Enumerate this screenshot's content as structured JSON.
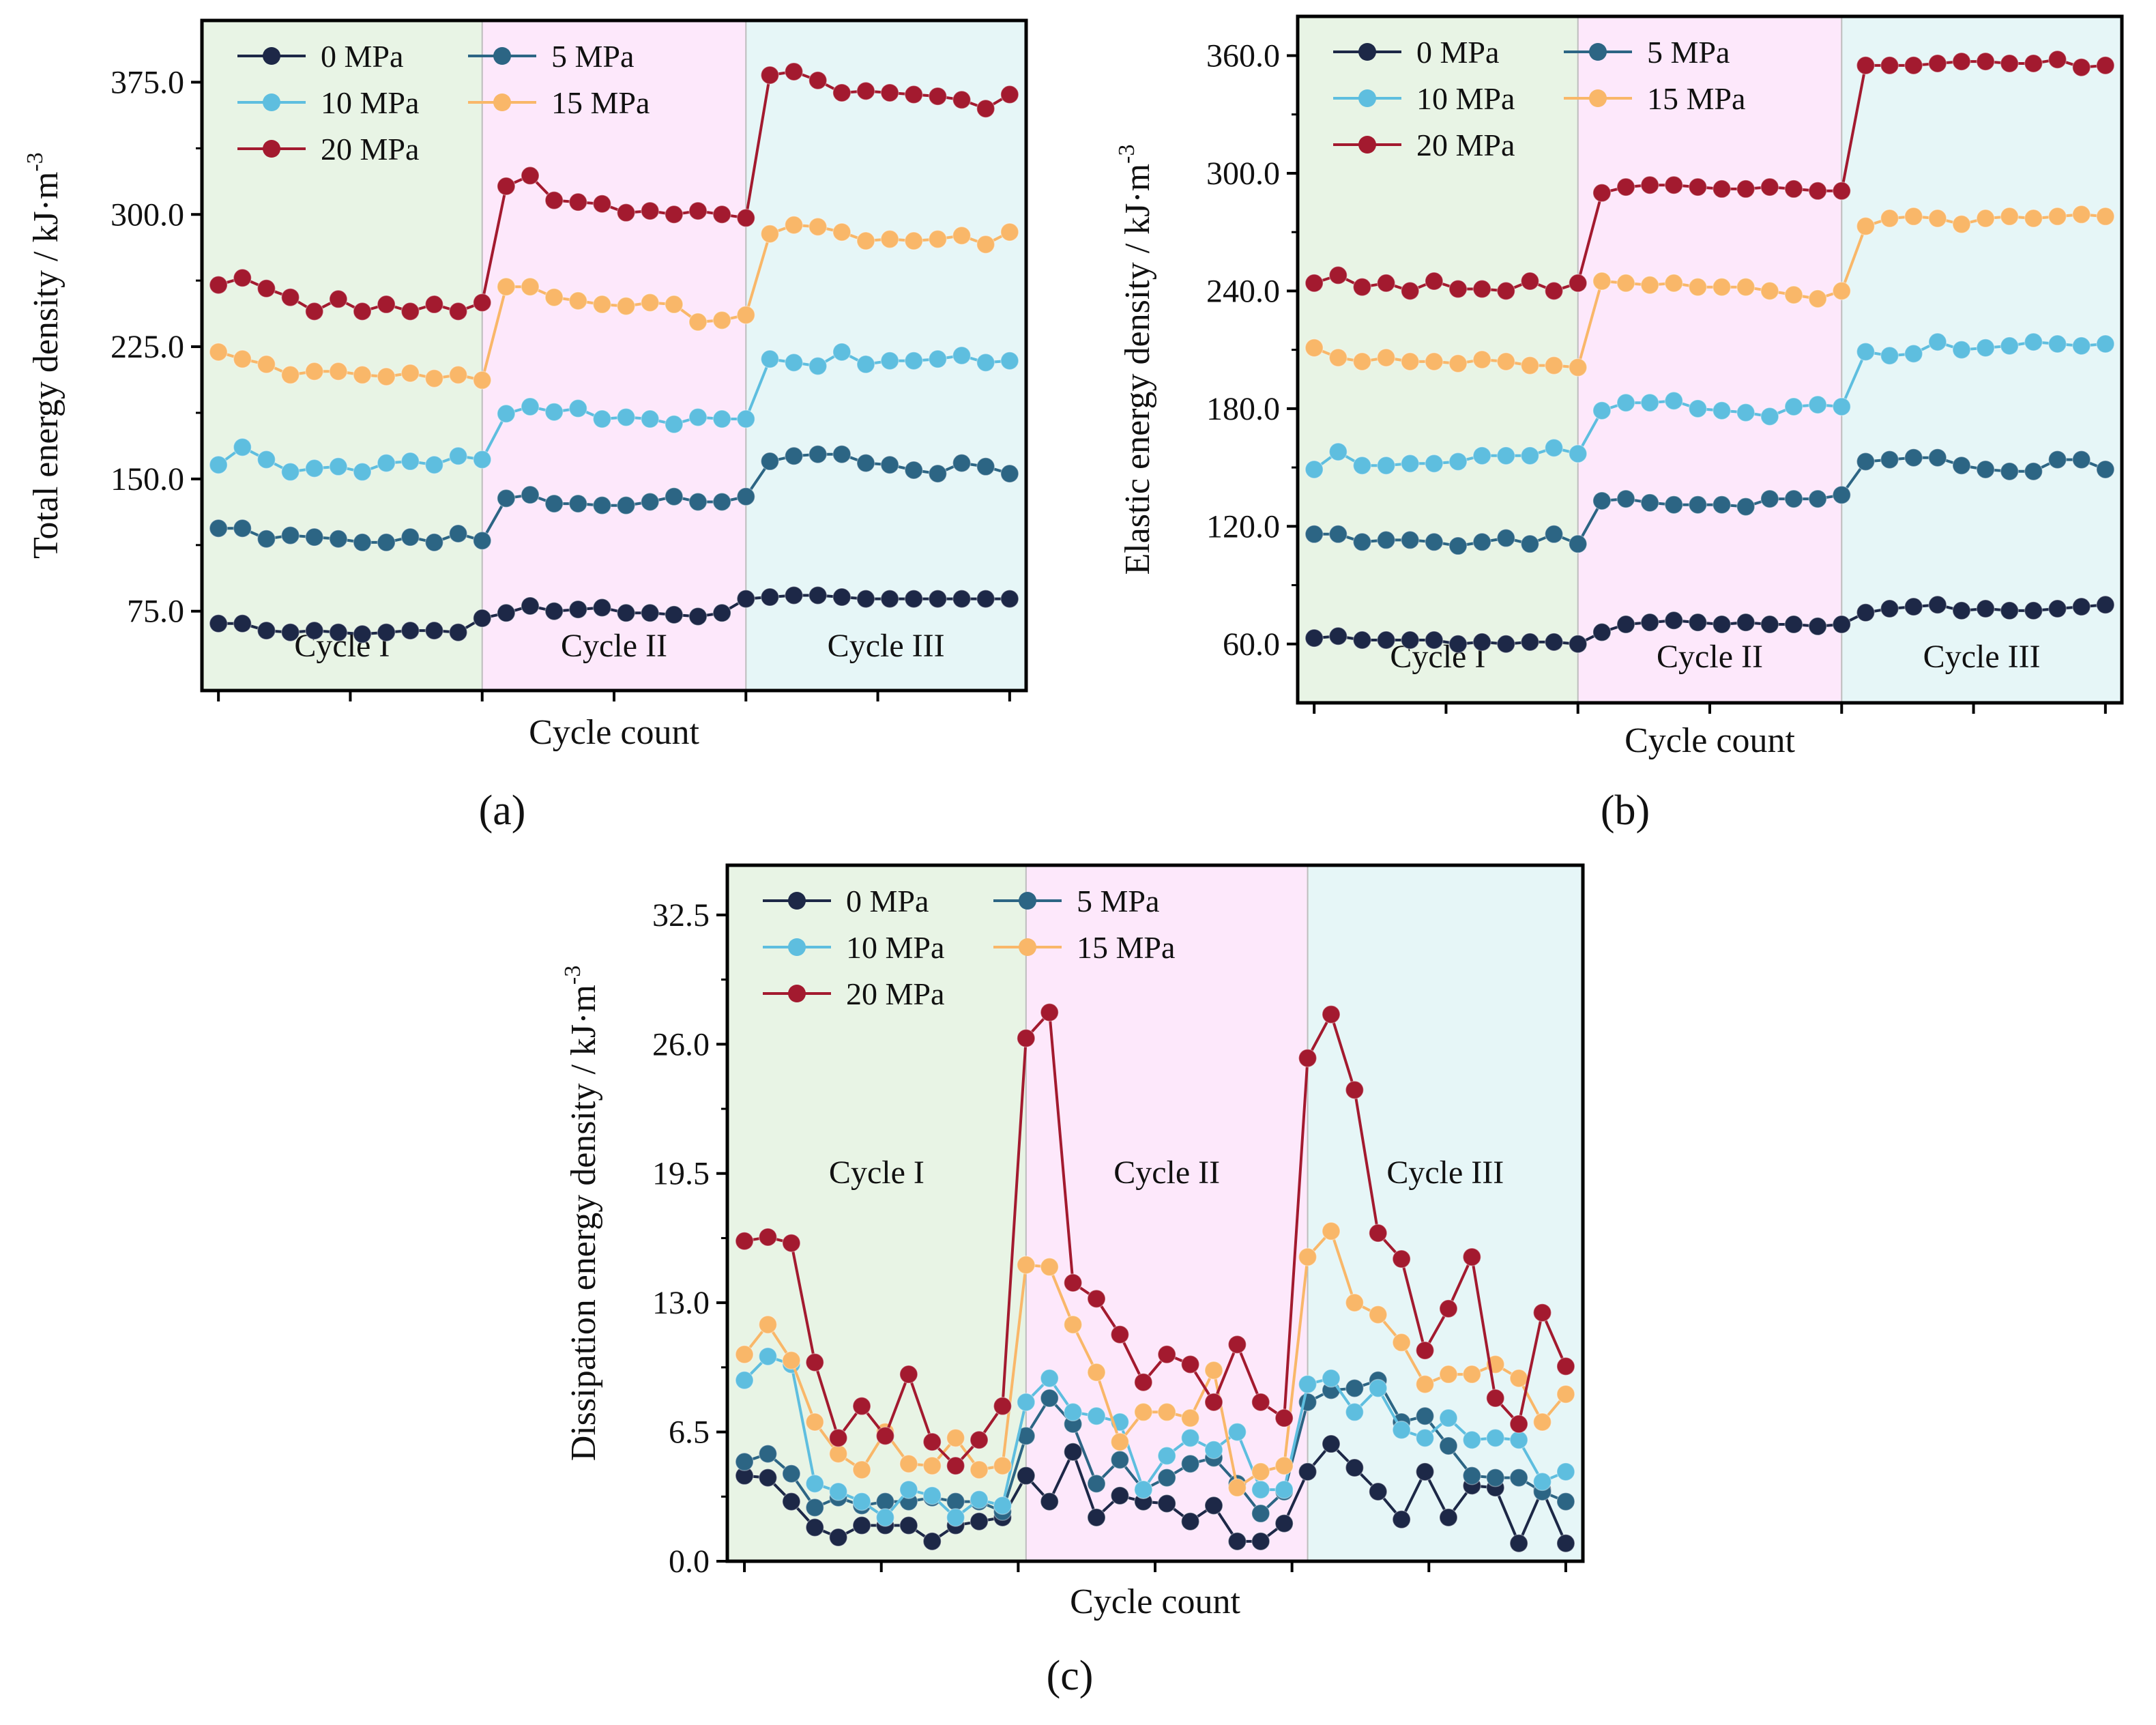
{
  "figure": {
    "colors": {
      "cycle1": "#e8f4e5",
      "cycle2": "#fde8fb",
      "cycle3": "#e6f6f7",
      "axis": "#000000",
      "divider": "#bdbdbd"
    },
    "series_styles": [
      {
        "name": "0 MPa",
        "color": "#1d2847"
      },
      {
        "name": "5 MPa",
        "color": "#2c6584"
      },
      {
        "name": "10 MPa",
        "color": "#5ebedf"
      },
      {
        "name": "15 MPa",
        "color": "#f9b769"
      },
      {
        "name": "20 MPa",
        "color": "#a31a2f"
      }
    ]
  },
  "chart_data": [
    {
      "type": "line",
      "panel_label": "(a)",
      "title": "",
      "xlabel": "Cycle count",
      "ylabel": "Total energy density / kJ·m",
      "ylabel_sup": "-3",
      "ylim": [
        30,
        410
      ],
      "yticks": [
        75,
        150,
        225,
        300,
        375
      ],
      "ytick_labels": [
        "75.0",
        "150.0",
        "225.0",
        "300.0",
        "375.0"
      ],
      "regions": [
        "Cycle I",
        "Cycle II",
        "Cycle III"
      ],
      "legend_position": "top-left",
      "series": [
        {
          "name": "0 MPa",
          "values": [
            68,
            68,
            64,
            63,
            64,
            63,
            62,
            63,
            64,
            64,
            63,
            71,
            74,
            78,
            75,
            76,
            77,
            74,
            74,
            73,
            72,
            74,
            82,
            83,
            84,
            84,
            83,
            82,
            82,
            82,
            82,
            82,
            82,
            82
          ]
        },
        {
          "name": "5 MPa",
          "values": [
            122,
            122,
            116,
            118,
            117,
            116,
            114,
            114,
            117,
            114,
            119,
            115,
            139,
            141,
            136,
            136,
            135,
            135,
            137,
            140,
            137,
            137,
            140,
            160,
            163,
            164,
            164,
            159,
            158,
            155,
            153,
            159,
            157,
            153
          ]
        },
        {
          "name": "10 MPa",
          "values": [
            158,
            168,
            161,
            154,
            156,
            157,
            154,
            159,
            160,
            158,
            163,
            161,
            187,
            191,
            188,
            190,
            184,
            185,
            184,
            181,
            185,
            184,
            184,
            218,
            216,
            214,
            222,
            215,
            217,
            217,
            218,
            220,
            216,
            217
          ]
        },
        {
          "name": "15 MPa",
          "values": [
            222,
            218,
            215,
            209,
            211,
            211,
            209,
            208,
            210,
            207,
            209,
            206,
            259,
            259,
            253,
            251,
            249,
            248,
            250,
            249,
            239,
            240,
            243,
            289,
            294,
            293,
            290,
            285,
            286,
            285,
            286,
            288,
            283,
            290
          ]
        },
        {
          "name": "20 MPa",
          "values": [
            260,
            264,
            258,
            253,
            245,
            252,
            245,
            249,
            245,
            249,
            245,
            250,
            316,
            322,
            308,
            307,
            306,
            301,
            302,
            300,
            302,
            300,
            298,
            379,
            381,
            376,
            369,
            370,
            369,
            368,
            367,
            365,
            360,
            368
          ]
        }
      ]
    },
    {
      "type": "line",
      "panel_label": "(b)",
      "title": "",
      "xlabel": "Cycle count",
      "ylabel": "Elastic energy density / kJ·m",
      "ylabel_sup": "-3",
      "ylim": [
        30,
        380
      ],
      "yticks": [
        60,
        120,
        180,
        240,
        300,
        360
      ],
      "ytick_labels": [
        "60.0",
        "120.0",
        "180.0",
        "240.0",
        "300.0",
        "360.0"
      ],
      "regions": [
        "Cycle I",
        "Cycle II",
        "Cycle III"
      ],
      "legend_position": "top-left",
      "series": [
        {
          "name": "0 MPa",
          "values": [
            63,
            64,
            62,
            62,
            62,
            62,
            60,
            61,
            60,
            61,
            61,
            60,
            66,
            70,
            71,
            72,
            71,
            70,
            71,
            70,
            70,
            69,
            70,
            76,
            78,
            79,
            80,
            77,
            78,
            77,
            77,
            78,
            79,
            80
          ]
        },
        {
          "name": "5 MPa",
          "values": [
            116,
            116,
            112,
            113,
            113,
            112,
            110,
            112,
            114,
            111,
            116,
            111,
            133,
            134,
            132,
            131,
            131,
            131,
            130,
            134,
            134,
            134,
            136,
            153,
            154,
            155,
            155,
            151,
            149,
            148,
            148,
            154,
            154,
            149
          ]
        },
        {
          "name": "10 MPa",
          "values": [
            149,
            158,
            151,
            151,
            152,
            152,
            153,
            156,
            156,
            156,
            160,
            157,
            179,
            183,
            183,
            184,
            180,
            179,
            178,
            176,
            181,
            182,
            181,
            209,
            207,
            208,
            214,
            210,
            211,
            212,
            214,
            213,
            212,
            213
          ]
        },
        {
          "name": "15 MPa",
          "values": [
            211,
            206,
            204,
            206,
            204,
            204,
            203,
            205,
            204,
            202,
            202,
            201,
            245,
            244,
            243,
            244,
            242,
            242,
            242,
            240,
            238,
            236,
            240,
            273,
            277,
            278,
            277,
            274,
            277,
            278,
            277,
            278,
            279,
            278
          ]
        },
        {
          "name": "20 MPa",
          "values": [
            244,
            248,
            242,
            244,
            240,
            245,
            241,
            241,
            240,
            245,
            240,
            244,
            290,
            293,
            294,
            294,
            293,
            292,
            292,
            293,
            292,
            291,
            291,
            355,
            355,
            355,
            356,
            357,
            357,
            356,
            356,
            358,
            354,
            355
          ]
        }
      ]
    },
    {
      "type": "line",
      "panel_label": "(c)",
      "title": "",
      "xlabel": "Cycle count",
      "ylabel": "Dissipation energy density / kJ·m",
      "ylabel_sup": "-3",
      "ylim": [
        0,
        35
      ],
      "yticks": [
        0,
        6.5,
        13,
        19.5,
        26,
        32.5
      ],
      "ytick_labels": [
        "0.0",
        "6.5",
        "13.0",
        "19.5",
        "26.0",
        "32.5"
      ],
      "regions": [
        "Cycle I",
        "Cycle II",
        "Cycle III"
      ],
      "legend_position": "top-left",
      "series": [
        {
          "name": "0 MPa",
          "values": [
            4.3,
            4.2,
            3.0,
            1.7,
            1.2,
            1.8,
            1.8,
            1.8,
            1.0,
            1.8,
            2.0,
            2.2,
            4.3,
            3.0,
            5.5,
            2.2,
            3.3,
            3.0,
            2.9,
            2.0,
            2.8,
            1.0,
            1.0,
            1.9,
            4.5,
            5.9,
            4.7,
            3.5,
            2.1,
            4.5,
            2.2,
            3.8,
            3.7,
            0.9,
            3.6,
            0.9
          ]
        },
        {
          "name": "5 MPa",
          "values": [
            5.0,
            5.4,
            4.4,
            2.7,
            3.2,
            2.8,
            3.0,
            3.0,
            3.2,
            3.0,
            3.0,
            2.5,
            6.3,
            8.2,
            6.9,
            3.9,
            5.1,
            3.6,
            4.2,
            4.9,
            5.2,
            3.9,
            2.4,
            3.5,
            8.0,
            8.6,
            8.7,
            9.1,
            7.0,
            7.3,
            5.8,
            4.3,
            4.2,
            4.2,
            3.5,
            3.0
          ]
        },
        {
          "name": "10 MPa",
          "values": [
            9.1,
            10.3,
            9.9,
            3.9,
            3.5,
            3.0,
            2.2,
            3.6,
            3.3,
            2.2,
            3.1,
            2.8,
            8.0,
            9.2,
            7.5,
            7.3,
            7.0,
            3.6,
            5.3,
            6.2,
            5.6,
            6.5,
            3.6,
            3.6,
            8.9,
            9.2,
            7.5,
            8.7,
            6.6,
            6.2,
            7.2,
            6.1,
            6.2,
            6.1,
            4.0,
            4.5
          ]
        },
        {
          "name": "15 MPa",
          "values": [
            10.4,
            11.9,
            10.1,
            7.0,
            5.4,
            4.6,
            6.5,
            4.9,
            4.8,
            6.2,
            4.6,
            4.8,
            14.9,
            14.8,
            11.9,
            9.5,
            6.0,
            7.5,
            7.5,
            7.2,
            9.6,
            3.7,
            4.5,
            4.8,
            15.3,
            16.6,
            13.0,
            12.4,
            11.0,
            8.9,
            9.4,
            9.4,
            9.9,
            9.2,
            7.0,
            8.4
          ]
        },
        {
          "name": "20 MPa",
          "values": [
            16.1,
            16.3,
            16.0,
            10.0,
            6.2,
            7.8,
            6.3,
            9.4,
            6.0,
            4.8,
            6.1,
            7.8,
            26.3,
            27.6,
            14.0,
            13.2,
            11.4,
            9.0,
            10.4,
            9.9,
            8.0,
            10.9,
            8.0,
            7.2,
            25.3,
            27.5,
            23.7,
            16.5,
            15.2,
            10.6,
            12.7,
            15.3,
            8.2,
            6.9,
            12.5,
            9.8
          ]
        }
      ]
    }
  ]
}
